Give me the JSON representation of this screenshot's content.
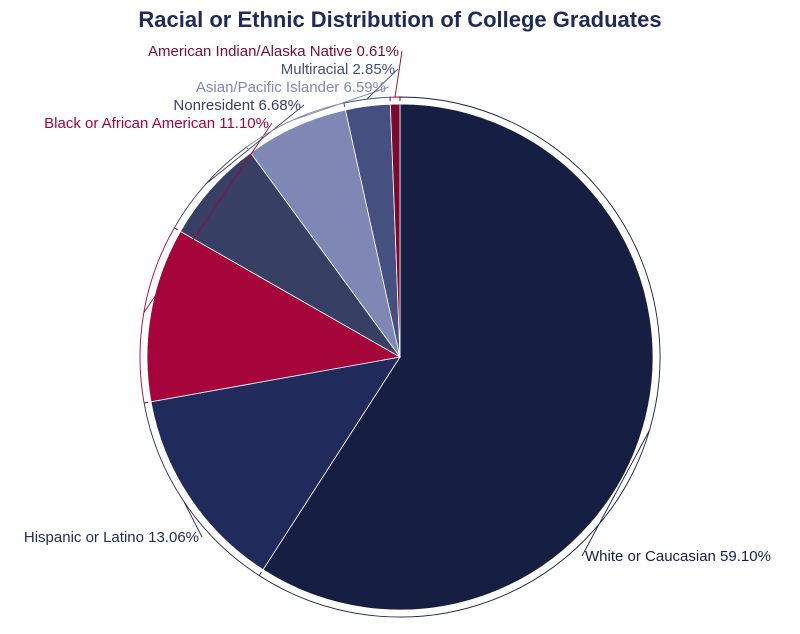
{
  "chart_data": {
    "type": "pie",
    "title": "Racial or Ethnic Distribution of College Graduates",
    "start_angle_deg": 0,
    "direction": "clockwise",
    "slices": [
      {
        "label": "White or Caucasian",
        "value": 59.1,
        "value_text": "59.10%",
        "color": "#161e42",
        "label_color": "#161e42"
      },
      {
        "label": "Hispanic or Latino",
        "value": 13.06,
        "value_text": "13.06%",
        "color": "#212b5b",
        "label_color": "#212b5b"
      },
      {
        "label": "Black or African American",
        "value": 11.1,
        "value_text": "11.10%",
        "color": "#a5053a",
        "label_color": "#a5053a"
      },
      {
        "label": "Nonresident",
        "value": 6.68,
        "value_text": "6.68%",
        "color": "#383f65",
        "label_color": "#383f65"
      },
      {
        "label": "Asian/Pacific Islander",
        "value": 6.59,
        "value_text": "6.59%",
        "color": "#7f88b4",
        "label_color": "#7f88b4"
      },
      {
        "label": "Multiracial",
        "value": 2.85,
        "value_text": "2.85%",
        "color": "#454f80",
        "label_color": "#454f80"
      },
      {
        "label": "American Indian/Alaska Native",
        "value": 0.61,
        "value_text": "0.61%",
        "color": "#7a0b30",
        "label_color": "#7a0b30"
      }
    ]
  }
}
